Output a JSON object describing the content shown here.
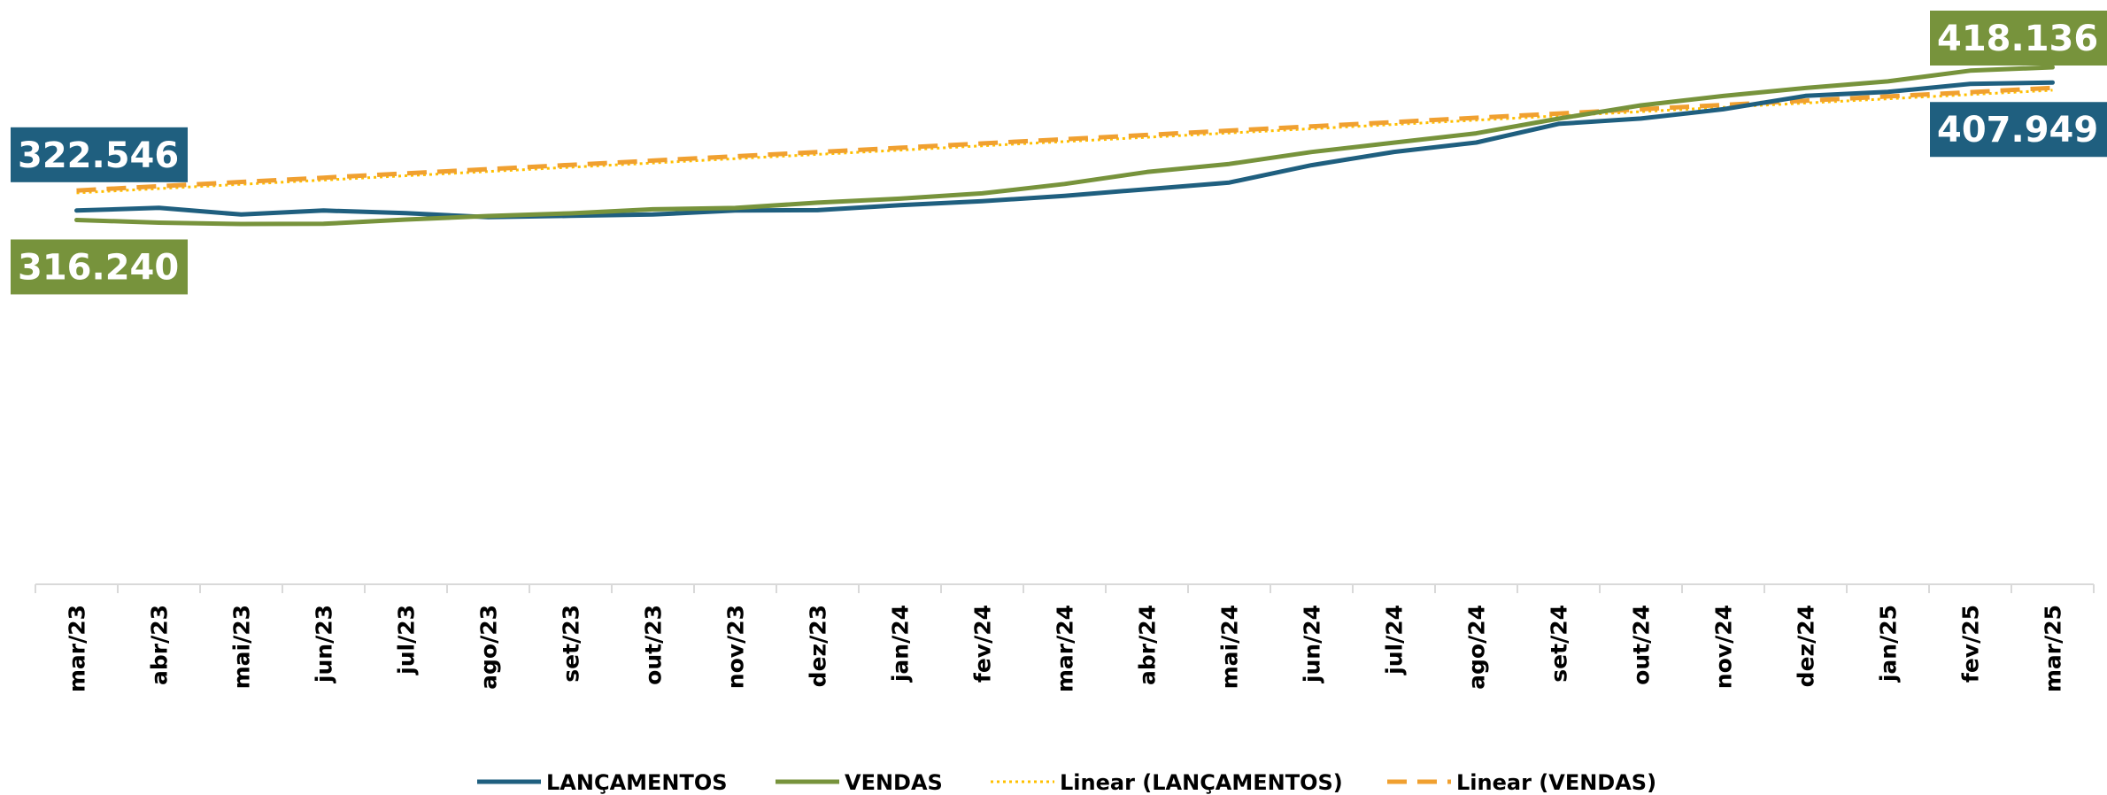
{
  "chart_data": {
    "type": "line",
    "categories": [
      "mar/23",
      "abr/23",
      "mai/23",
      "jun/23",
      "jul/23",
      "ago/23",
      "set/23",
      "out/23",
      "nov/23",
      "dez/23",
      "jan/24",
      "fev/24",
      "mar/24",
      "abr/24",
      "mai/24",
      "jun/24",
      "jul/24",
      "ago/24",
      "set/24",
      "out/24",
      "nov/24",
      "dez/24",
      "jan/25",
      "fev/25",
      "mar/25"
    ],
    "series": [
      {
        "name": "LANÇAMENTOS",
        "color": "#1f5f7f",
        "style": "solid",
        "values": [
          322546,
          324325,
          319877,
          322546,
          320767,
          318098,
          318988,
          319877,
          322546,
          322800,
          326104,
          328773,
          332332,
          336780,
          341228,
          352792,
          361688,
          367916,
          380370,
          383930,
          390157,
          399053,
          401722,
          407060,
          407949
        ],
        "value_labels": [
          "322.546",
          null,
          null,
          null,
          null,
          null,
          null,
          null,
          null,
          null,
          null,
          null,
          null,
          null,
          null,
          null,
          null,
          null,
          null,
          null,
          null,
          null,
          null,
          null,
          "407.949"
        ]
      },
      {
        "name": "VENDAS",
        "color": "#77933c",
        "style": "solid",
        "values": [
          316240,
          314461,
          313571,
          313700,
          316500,
          318909,
          320688,
          323357,
          324246,
          327805,
          330474,
          334032,
          340259,
          348266,
          353603,
          361610,
          367837,
          374064,
          383850,
          392746,
          398973,
          404311,
          408759,
          415876,
          418136
        ],
        "value_labels": [
          "316.240",
          null,
          null,
          null,
          null,
          null,
          null,
          null,
          null,
          null,
          null,
          null,
          null,
          null,
          null,
          null,
          null,
          null,
          null,
          null,
          null,
          null,
          null,
          null,
          "418.136"
        ]
      },
      {
        "name": "Linear (LANÇAMENTOS)",
        "color": "#ffc000",
        "style": "dotted",
        "values": [
          334325,
          337179,
          340033,
          342887,
          345741,
          348595,
          351449,
          354303,
          357157,
          360011,
          362865,
          365719,
          368573,
          371427,
          374281,
          377135,
          379989,
          382843,
          385697,
          388551,
          391405,
          394259,
          397113,
          399967,
          402821
        ]
      },
      {
        "name": "Linear (VENDAS)",
        "color": "#f0a030",
        "style": "dashed",
        "values": [
          335921,
          338775,
          341629,
          344483,
          347337,
          350191,
          353045,
          355899,
          358753,
          361607,
          364461,
          367315,
          370169,
          373023,
          375877,
          378731,
          381585,
          384439,
          387293,
          390147,
          393001,
          395855,
          398709,
          401563,
          404417
        ]
      }
    ]
  }
}
